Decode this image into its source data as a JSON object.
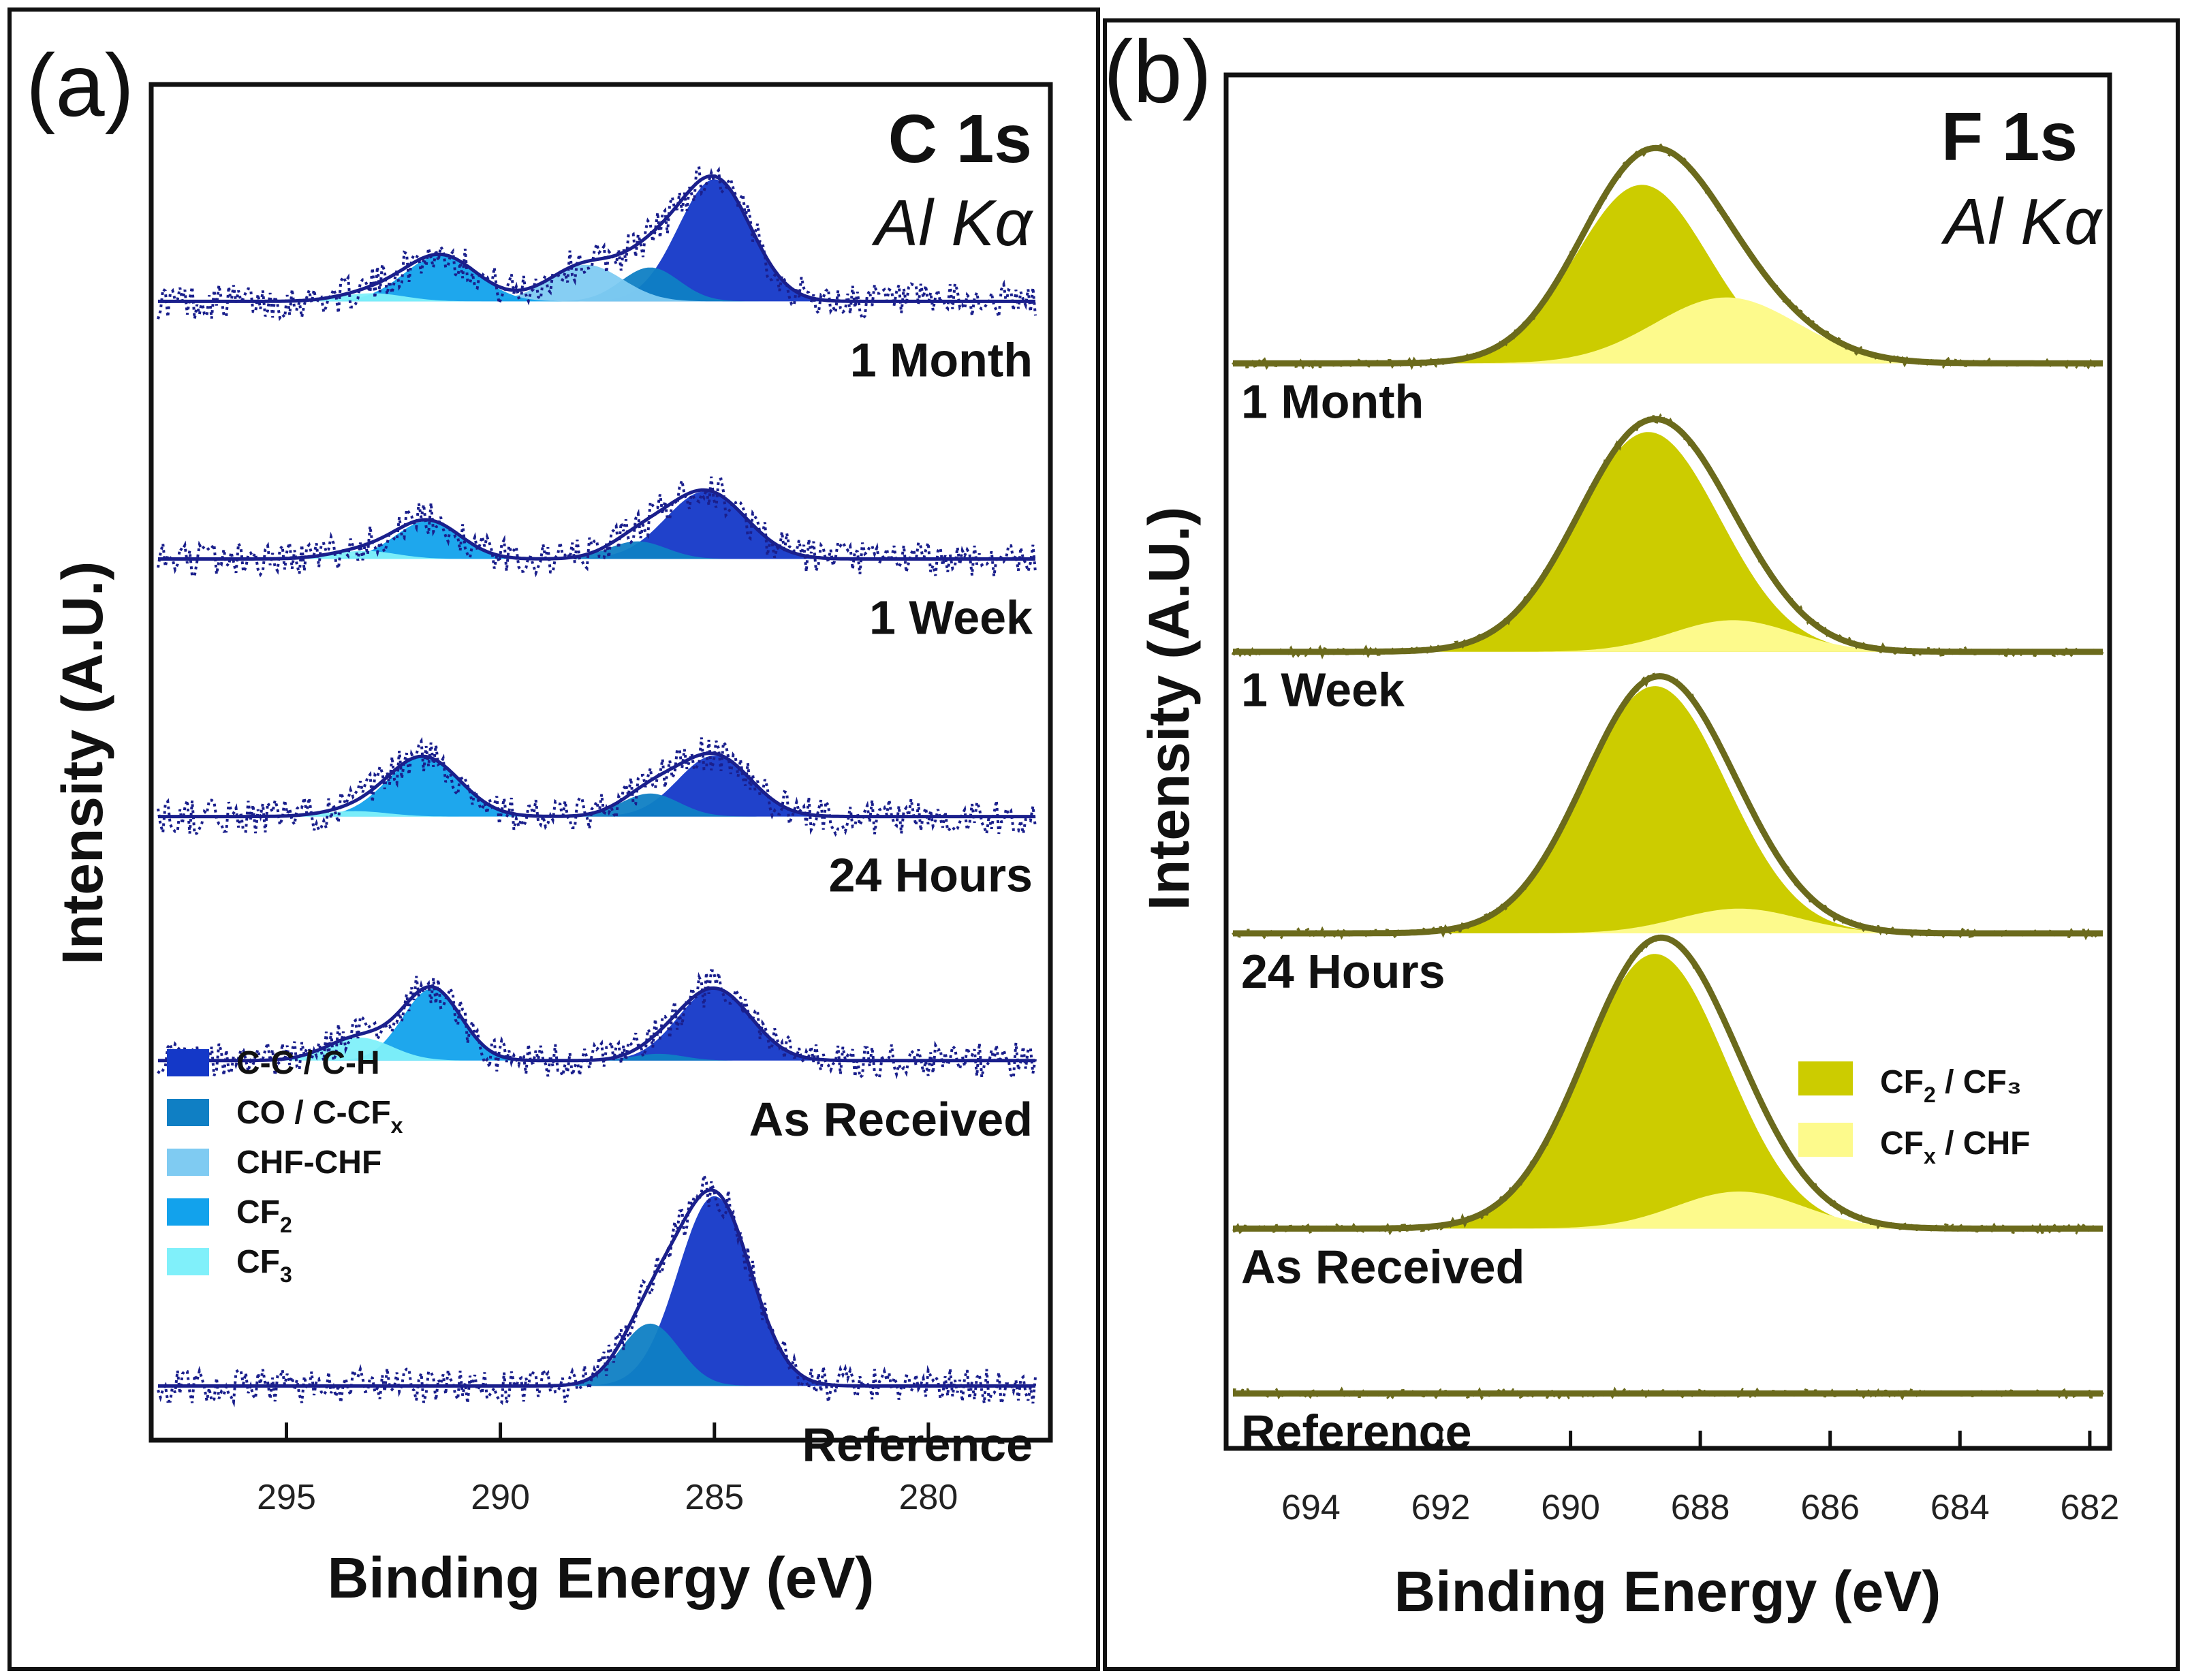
{
  "panels": [
    {
      "letter": "(a)",
      "title": "C 1s",
      "subtitle": "Al Kα",
      "xlabel": "Binding Energy (eV)",
      "ylabel": "Intensity (A.U.)",
      "colors": {
        "envelope": "#1a1f8c",
        "data": "#1a1f8c"
      },
      "legend": [
        {
          "label": "C-C / C-H",
          "sub": "",
          "suffix": "",
          "color": "#1438c8"
        },
        {
          "label": "CO / C-CF",
          "sub": "x",
          "suffix": "",
          "color": "#0f7fc4"
        },
        {
          "label": "CHF-CHF",
          "sub": "",
          "suffix": "",
          "color": "#7fcbf2"
        },
        {
          "label": "CF",
          "sub": "2",
          "suffix": "",
          "color": "#12a2ec"
        },
        {
          "label": "CF",
          "sub": "3",
          "suffix": "",
          "color": "#80f0fa"
        }
      ]
    },
    {
      "letter": "(b)",
      "title": "F 1s",
      "subtitle": "Al Kα",
      "xlabel": "Binding Energy (eV)",
      "ylabel": "Intensity (A.U.)",
      "colors": {
        "envelope": "#6b6a1c",
        "data": "#6b6a1c"
      },
      "legend": [
        {
          "label": "CF",
          "sub": "2",
          "suffix": " / CF₃",
          "color": "#cccc00"
        },
        {
          "label": "CF",
          "sub": "x",
          "suffix": " / CHF",
          "color": "#fdfa8c"
        }
      ]
    }
  ],
  "chart_data": [
    {
      "type": "line",
      "title": "C 1s",
      "xlabel": "Binding Energy (eV)",
      "ylabel": "Intensity (A.U.)",
      "xlim": [
        298,
        277.5
      ],
      "xticks": [
        295,
        290,
        285,
        280
      ],
      "ylim": [
        0,
        100
      ],
      "traces": [
        {
          "name": "1 Month",
          "baseline": 84,
          "components": [
            {
              "label": "C-C / C-H",
              "center": 285.0,
              "fwhm": 2.0,
              "height": 9.0
            },
            {
              "label": "CO / C-CF_x",
              "center": 286.5,
              "fwhm": 1.6,
              "height": 2.5
            },
            {
              "label": "CHF-CHF",
              "center": 288.0,
              "fwhm": 2.0,
              "height": 2.7
            },
            {
              "label": "CF_2",
              "center": 291.4,
              "fwhm": 2.0,
              "height": 3.4
            },
            {
              "label": "CF_3",
              "center": 293.0,
              "fwhm": 1.8,
              "height": 0.6
            }
          ]
        },
        {
          "name": "1 Week",
          "baseline": 65,
          "components": [
            {
              "label": "C-C / C-H",
              "center": 285.2,
              "fwhm": 2.2,
              "height": 5.0
            },
            {
              "label": "CO / C-CF_x",
              "center": 286.8,
              "fwhm": 1.6,
              "height": 1.3
            },
            {
              "label": "CF_2",
              "center": 291.7,
              "fwhm": 1.8,
              "height": 2.8
            },
            {
              "label": "CF_3",
              "center": 293.2,
              "fwhm": 1.8,
              "height": 0.6
            }
          ]
        },
        {
          "name": "24 Hours",
          "baseline": 46,
          "components": [
            {
              "label": "C-C / C-H",
              "center": 285.0,
              "fwhm": 2.0,
              "height": 4.5
            },
            {
              "label": "CO / C-CF_x",
              "center": 286.5,
              "fwhm": 1.6,
              "height": 1.7
            },
            {
              "label": "CF_2",
              "center": 291.8,
              "fwhm": 2.0,
              "height": 4.4
            },
            {
              "label": "CF_3",
              "center": 293.4,
              "fwhm": 1.8,
              "height": 0.4
            }
          ]
        },
        {
          "name": "As Received",
          "baseline": 28,
          "components": [
            {
              "label": "C-C / C-H",
              "center": 285.0,
              "fwhm": 2.0,
              "height": 5.3
            },
            {
              "label": "CO / C-CF_x",
              "center": 286.3,
              "fwhm": 1.4,
              "height": 0.5
            },
            {
              "label": "CF_2",
              "center": 291.6,
              "fwhm": 1.6,
              "height": 5.3
            },
            {
              "label": "CF_3",
              "center": 293.3,
              "fwhm": 1.8,
              "height": 1.7
            }
          ]
        },
        {
          "name": "Reference",
          "baseline": 4,
          "components": [
            {
              "label": "C-C / C-H",
              "center": 285.0,
              "fwhm": 2.0,
              "height": 14.0
            },
            {
              "label": "CO / C-CF_x",
              "center": 286.5,
              "fwhm": 1.6,
              "height": 4.6
            }
          ]
        }
      ]
    },
    {
      "type": "line",
      "title": "F 1s",
      "xlabel": "Binding Energy (eV)",
      "ylabel": "Intensity (A.U.)",
      "xlim": [
        695.2,
        681.8
      ],
      "xticks": [
        694,
        692,
        690,
        688,
        686,
        684,
        682
      ],
      "ylim": [
        0,
        100
      ],
      "traces": [
        {
          "name": "1 Month",
          "baseline": 79,
          "components": [
            {
              "label": "CF_2 / CF_3",
              "center": 688.9,
              "fwhm": 2.4,
              "height": 13.0
            },
            {
              "label": "CF_x / CHF",
              "center": 687.6,
              "fwhm": 2.6,
              "height": 4.8
            }
          ]
        },
        {
          "name": "1 Week",
          "baseline": 58,
          "components": [
            {
              "label": "CF_2 / CF_3",
              "center": 688.8,
              "fwhm": 2.6,
              "height": 16.0
            },
            {
              "label": "CF_x / CHF",
              "center": 687.5,
              "fwhm": 2.2,
              "height": 2.3
            }
          ]
        },
        {
          "name": "24 Hours",
          "baseline": 37.5,
          "components": [
            {
              "label": "CF_2 / CF_3",
              "center": 688.7,
              "fwhm": 2.6,
              "height": 18.0
            },
            {
              "label": "CF_x / CHF",
              "center": 687.4,
              "fwhm": 2.2,
              "height": 1.8
            }
          ]
        },
        {
          "name": "As Received",
          "baseline": 16,
          "components": [
            {
              "label": "CF_2 / CF_3",
              "center": 688.7,
              "fwhm": 2.6,
              "height": 20.0
            },
            {
              "label": "CF_x / CHF",
              "center": 687.4,
              "fwhm": 2.3,
              "height": 2.7
            }
          ]
        },
        {
          "name": "Reference",
          "baseline": 4,
          "components": []
        }
      ]
    }
  ]
}
